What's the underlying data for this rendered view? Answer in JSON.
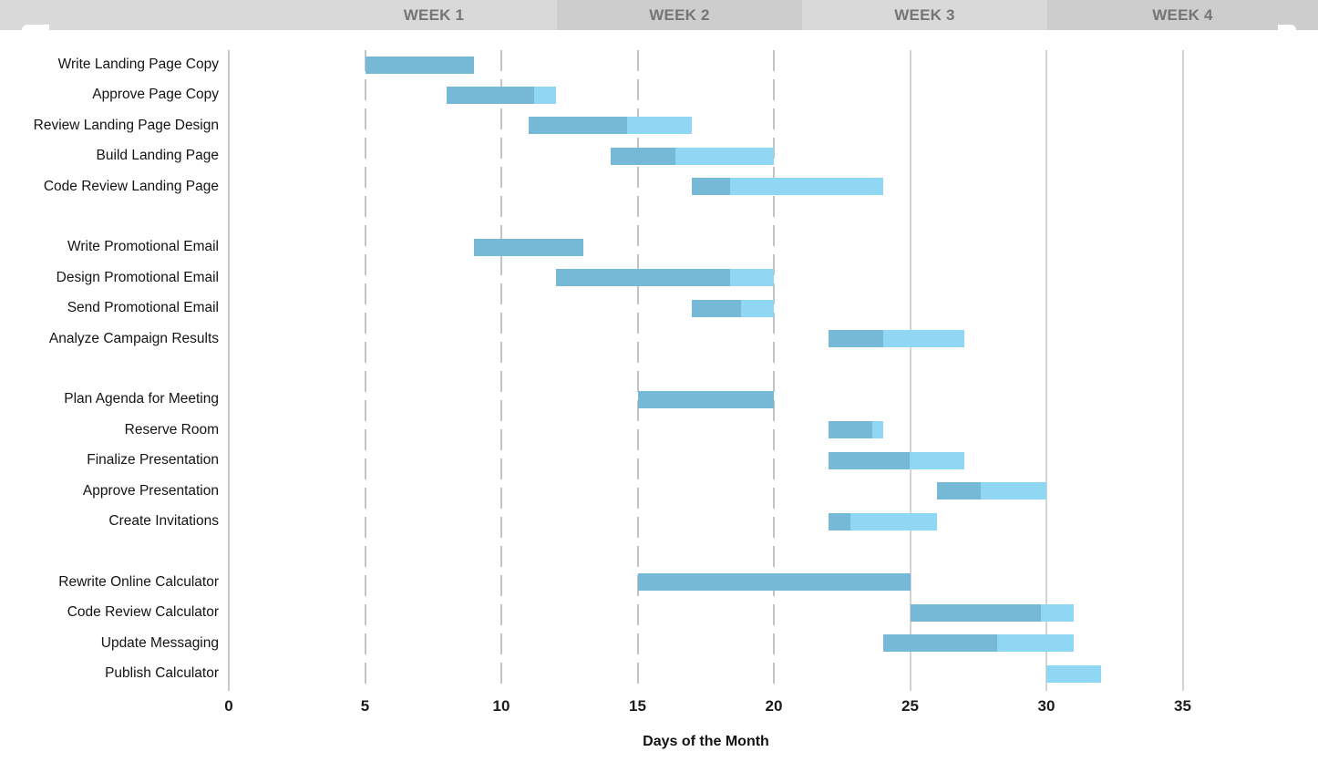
{
  "header": {
    "weeks": [
      {
        "label": "WEEK 1"
      },
      {
        "label": "WEEK 2"
      },
      {
        "label": "WEEK 3"
      },
      {
        "label": "WEEK 4"
      }
    ]
  },
  "chart_data": {
    "type": "bar",
    "subtype": "gantt",
    "xlabel": "Days of the Month",
    "xlim": [
      0,
      40
    ],
    "x_ticks": [
      0,
      5,
      10,
      15,
      20,
      25,
      30,
      35
    ],
    "x_gridlines": {
      "solid_left": [
        0
      ],
      "dashed": [
        5,
        10,
        15,
        20
      ],
      "solid_right": [
        25,
        30,
        35
      ]
    },
    "week_headers": [
      "WEEK 1",
      "WEEK 2",
      "WEEK 3",
      "WEEK 4"
    ],
    "legend": "darker segment = completed portion, lighter segment = remaining portion",
    "tasks": [
      {
        "name": "Write Landing Page Copy",
        "group": 1,
        "start": 5,
        "end": 9,
        "complete_through": 9,
        "percent_complete": 100
      },
      {
        "name": "Approve Page Copy",
        "group": 1,
        "start": 8,
        "end": 12,
        "complete_through": 11.2,
        "percent_complete": 80
      },
      {
        "name": "Review Landing Page Design",
        "group": 1,
        "start": 11,
        "end": 17,
        "complete_through": 14.6,
        "percent_complete": 60
      },
      {
        "name": "Build Landing Page",
        "group": 1,
        "start": 14,
        "end": 20,
        "complete_through": 16.4,
        "percent_complete": 40
      },
      {
        "name": "Code Review Landing Page",
        "group": 1,
        "start": 17,
        "end": 24,
        "complete_through": 18.4,
        "percent_complete": 20
      },
      {
        "name": "Write Promotional Email",
        "group": 2,
        "start": 9,
        "end": 13,
        "complete_through": 13,
        "percent_complete": 100
      },
      {
        "name": "Design Promotional Email",
        "group": 2,
        "start": 12,
        "end": 20,
        "complete_through": 18.4,
        "percent_complete": 80
      },
      {
        "name": "Send Promotional Email",
        "group": 2,
        "start": 17,
        "end": 20,
        "complete_through": 18.8,
        "percent_complete": 60
      },
      {
        "name": "Analyze Campaign Results",
        "group": 2,
        "start": 22,
        "end": 27,
        "complete_through": 24,
        "percent_complete": 40
      },
      {
        "name": "Plan Agenda for Meeting",
        "group": 3,
        "start": 15,
        "end": 20,
        "complete_through": 20,
        "percent_complete": 100
      },
      {
        "name": "Reserve Room",
        "group": 3,
        "start": 22,
        "end": 24,
        "complete_through": 23.6,
        "percent_complete": 80
      },
      {
        "name": "Finalize Presentation",
        "group": 3,
        "start": 22,
        "end": 27,
        "complete_through": 25,
        "percent_complete": 60
      },
      {
        "name": "Approve Presentation",
        "group": 3,
        "start": 26,
        "end": 30,
        "complete_through": 27.6,
        "percent_complete": 40
      },
      {
        "name": "Create Invitations",
        "group": 3,
        "start": 22,
        "end": 26,
        "complete_through": 22.8,
        "percent_complete": 20
      },
      {
        "name": "Rewrite Online Calculator",
        "group": 4,
        "start": 15,
        "end": 25,
        "complete_through": 25,
        "percent_complete": 100
      },
      {
        "name": "Code Review Calculator",
        "group": 4,
        "start": 25,
        "end": 31,
        "complete_through": 29.8,
        "percent_complete": 80
      },
      {
        "name": "Update Messaging",
        "group": 4,
        "start": 24,
        "end": 31,
        "complete_through": 28.2,
        "percent_complete": 60
      },
      {
        "name": "Publish Calculator",
        "group": 4,
        "start": 30,
        "end": 32,
        "complete_through": 30,
        "percent_complete": 0
      }
    ]
  },
  "colors": {
    "bar_complete": "#76b9d6",
    "bar_remaining": "#90d7f3",
    "header_light": "#d9d9d9",
    "header_dark": "#cdcdcd",
    "header_text": "#757575",
    "gridline": "#c9c9c9",
    "label_text": "#141414"
  }
}
